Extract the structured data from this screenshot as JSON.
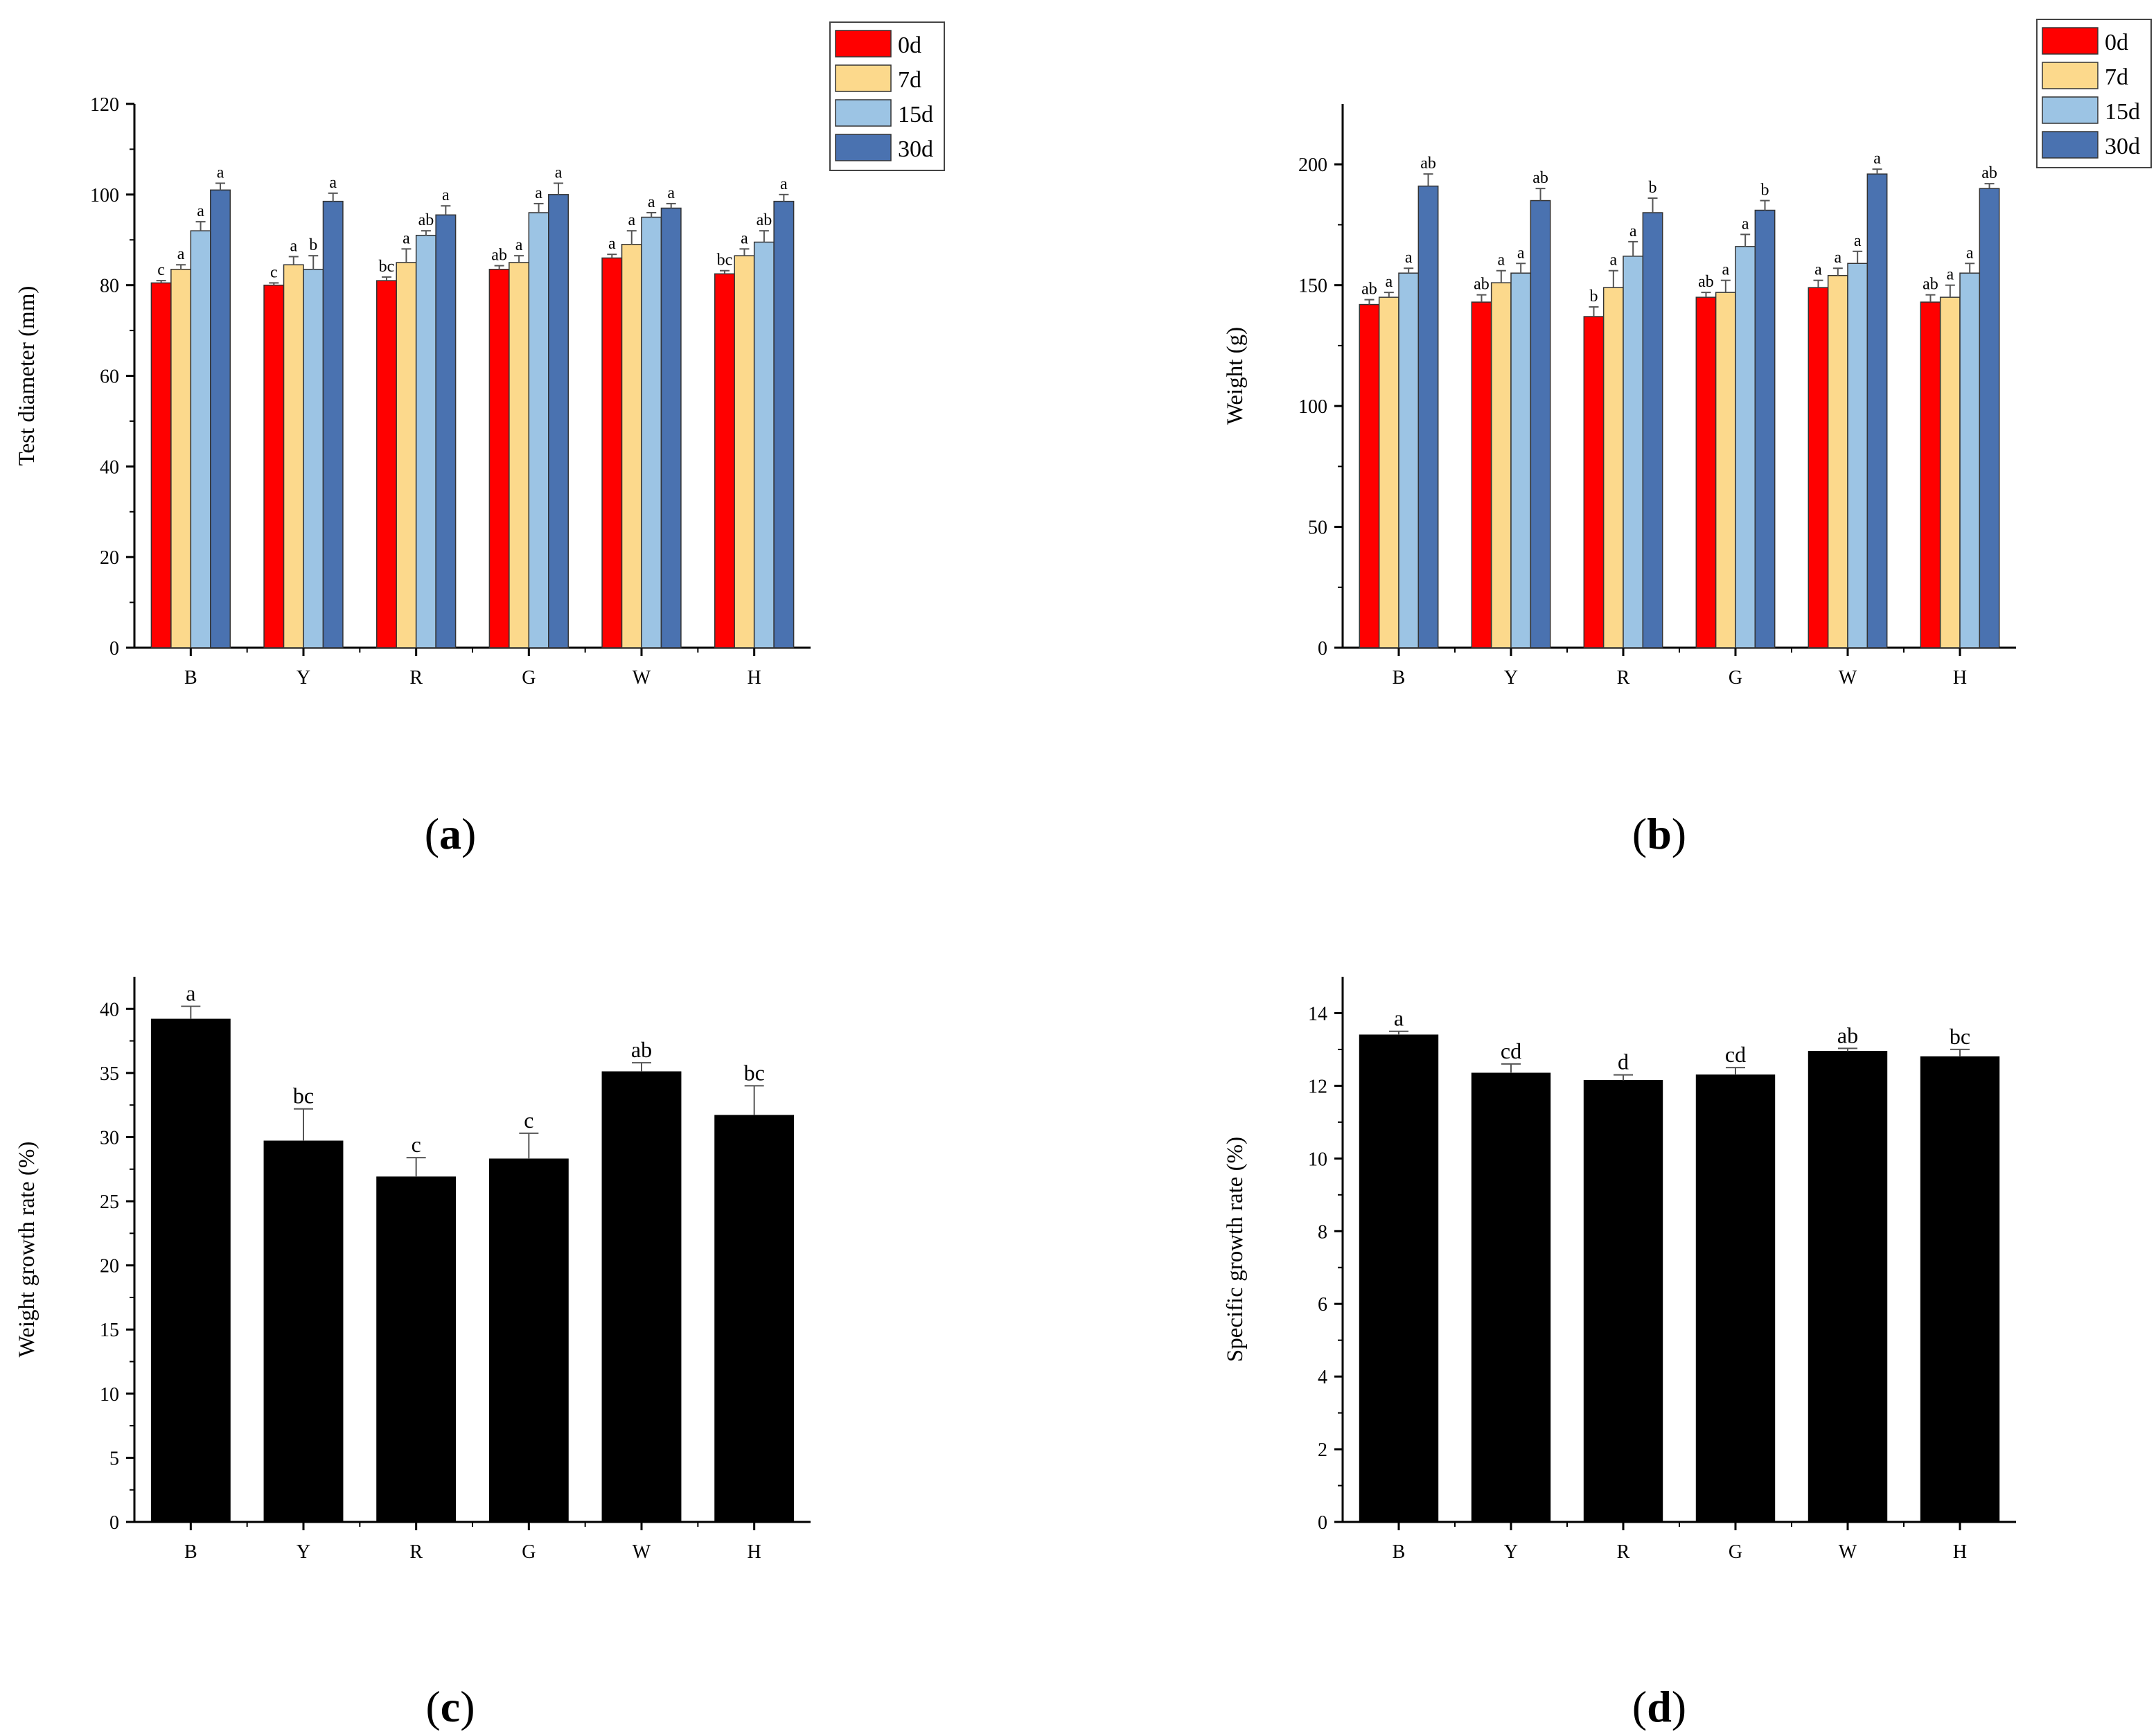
{
  "figure": {
    "panel_labels": [
      {
        "open": "(",
        "letter": "a",
        "close": ")"
      },
      {
        "open": "(",
        "letter": "b",
        "close": ")"
      },
      {
        "open": "(",
        "letter": "c",
        "close": ")"
      },
      {
        "open": "(",
        "letter": "d",
        "close": ")"
      }
    ]
  },
  "chart_data": [
    {
      "id": "a",
      "type": "bar",
      "title": "",
      "xlabel": "",
      "ylabel": "Test diameter (mm)",
      "ylim": [
        0,
        120
      ],
      "yticks": [
        0,
        20,
        40,
        60,
        80,
        100,
        120
      ],
      "categories": [
        "B",
        "Y",
        "R",
        "G",
        "W",
        "H"
      ],
      "legend": {
        "placement": "top-right",
        "entries": [
          "0d",
          "7d",
          "15d",
          "30d"
        ]
      },
      "series": [
        {
          "name": "0d",
          "color": "#ff0000",
          "values": [
            80.5,
            80.0,
            81.0,
            83.5,
            86.0,
            82.5
          ],
          "errors": [
            0.5,
            0.5,
            0.8,
            0.8,
            0.8,
            0.7
          ],
          "letters": [
            "c",
            "c",
            "bc",
            "ab",
            "a",
            "bc"
          ]
        },
        {
          "name": "7d",
          "color": "#fcd98c",
          "values": [
            83.5,
            84.5,
            85.0,
            85.0,
            89.0,
            86.5
          ],
          "errors": [
            1.0,
            1.8,
            3.0,
            1.5,
            3.0,
            1.5
          ],
          "letters": [
            "a",
            "a",
            "a",
            "a",
            "a",
            "a"
          ]
        },
        {
          "name": "15d",
          "color": "#9cc4e4",
          "values": [
            92.0,
            83.5,
            91.0,
            96.0,
            95.0,
            89.5
          ],
          "errors": [
            2.0,
            3.0,
            1.0,
            2.0,
            1.0,
            2.5
          ],
          "letters": [
            "a",
            "b",
            "ab",
            "a",
            "a",
            "ab"
          ]
        },
        {
          "name": "30d",
          "color": "#4a72b0",
          "values": [
            101.0,
            98.5,
            95.5,
            100.0,
            97.0,
            98.5
          ],
          "errors": [
            1.5,
            1.8,
            2.0,
            2.5,
            1.0,
            1.5
          ],
          "letters": [
            "a",
            "a",
            "a",
            "a",
            "a",
            "a"
          ]
        }
      ]
    },
    {
      "id": "b",
      "type": "bar",
      "title": "",
      "xlabel": "",
      "ylabel": "Weight (g)",
      "ylim": [
        0,
        225
      ],
      "yticks": [
        0,
        50,
        100,
        150,
        200
      ],
      "categories": [
        "B",
        "Y",
        "R",
        "G",
        "W",
        "H"
      ],
      "legend": {
        "placement": "top-right",
        "entries": [
          "0d",
          "7d",
          "15d",
          "30d"
        ]
      },
      "series": [
        {
          "name": "0d",
          "color": "#ff0000",
          "values": [
            142,
            143,
            137,
            145,
            149,
            143
          ],
          "errors": [
            2,
            3,
            4,
            2,
            3,
            3
          ],
          "letters": [
            "ab",
            "ab",
            "b",
            "ab",
            "a",
            "ab"
          ]
        },
        {
          "name": "7d",
          "color": "#fcd98c",
          "values": [
            145,
            151,
            149,
            147,
            154,
            145
          ],
          "errors": [
            2,
            5,
            7,
            5,
            3,
            5
          ],
          "letters": [
            "a",
            "a",
            "a",
            "a",
            "a",
            "a"
          ]
        },
        {
          "name": "15d",
          "color": "#9cc4e4",
          "values": [
            155,
            155,
            162,
            166,
            159,
            155
          ],
          "errors": [
            2,
            4,
            6,
            5,
            5,
            4
          ],
          "letters": [
            "a",
            "a",
            "a",
            "a",
            "a",
            "a"
          ]
        },
        {
          "name": "30d",
          "color": "#4a72b0",
          "values": [
            191,
            185,
            180,
            181,
            196,
            190
          ],
          "errors": [
            5,
            5,
            6,
            4,
            2,
            2
          ],
          "letters": [
            "ab",
            "ab",
            "b",
            "b",
            "a",
            "ab"
          ]
        }
      ]
    },
    {
      "id": "c",
      "type": "bar",
      "title": "",
      "xlabel": "",
      "ylabel": "Weight growth rate (%)",
      "ylim": [
        0,
        42.5
      ],
      "yticks": [
        0,
        5,
        10,
        15,
        20,
        25,
        30,
        35,
        40
      ],
      "categories": [
        "B",
        "Y",
        "R",
        "G",
        "W",
        "H"
      ],
      "series": [
        {
          "name": "",
          "color": "#000000",
          "values": [
            39.2,
            29.7,
            26.9,
            28.3,
            35.1,
            31.7
          ],
          "errors": [
            1.0,
            2.5,
            1.5,
            2.0,
            0.7,
            2.3
          ],
          "letters": [
            "a",
            "bc",
            "c",
            "c",
            "ab",
            "bc"
          ]
        }
      ]
    },
    {
      "id": "d",
      "type": "bar",
      "title": "",
      "xlabel": "",
      "ylabel": "Specific growth rate (%)",
      "ylim": [
        0,
        15
      ],
      "yticks": [
        0,
        2,
        4,
        6,
        8,
        10,
        12,
        14
      ],
      "categories": [
        "B",
        "Y",
        "R",
        "G",
        "W",
        "H"
      ],
      "series": [
        {
          "name": "",
          "color": "#000000",
          "values": [
            13.4,
            12.35,
            12.15,
            12.3,
            12.95,
            12.8
          ],
          "errors": [
            0.1,
            0.25,
            0.15,
            0.2,
            0.08,
            0.2
          ],
          "letters": [
            "a",
            "cd",
            "d",
            "cd",
            "ab",
            "bc"
          ]
        }
      ]
    }
  ]
}
